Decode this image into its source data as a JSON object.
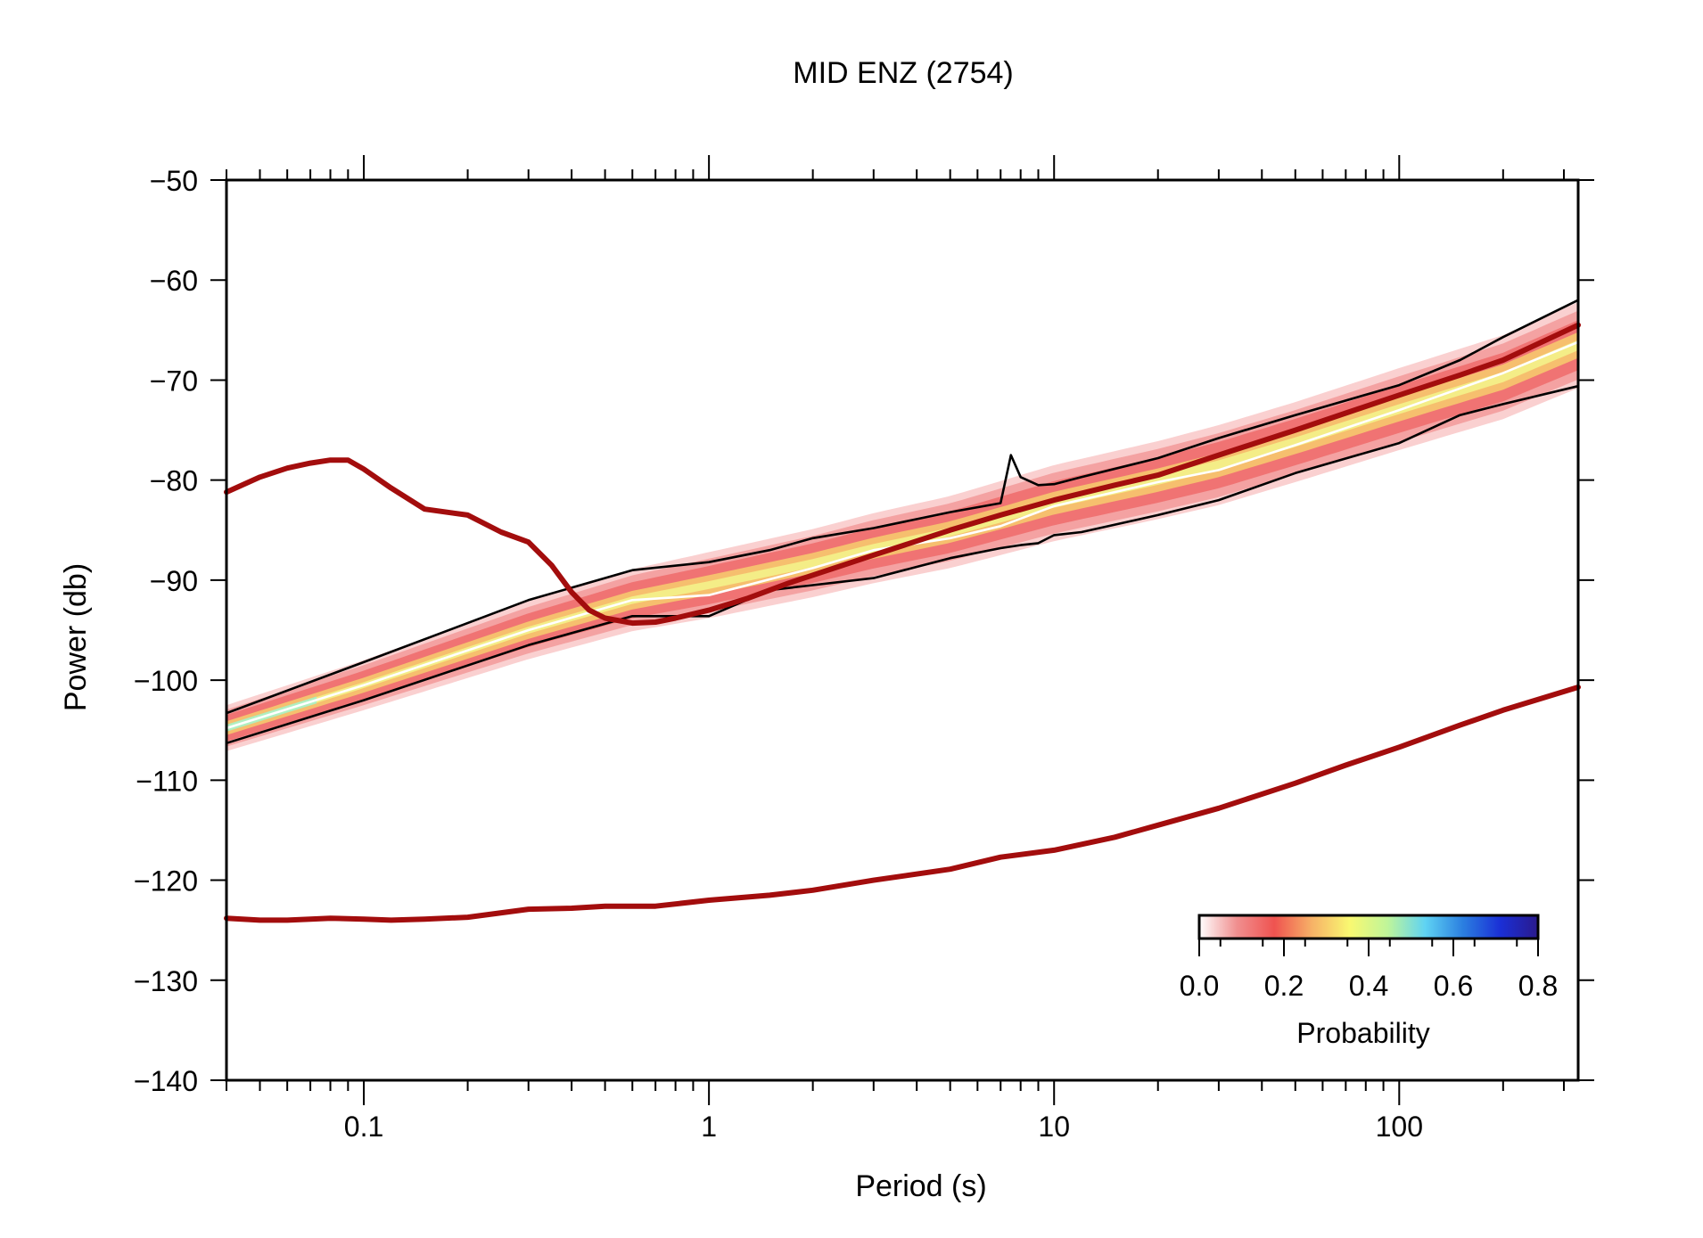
{
  "chart_data": {
    "type": "line",
    "title": "MID ENZ (2754)",
    "xlabel": "Period (s)",
    "ylabel": "Power (db)",
    "x_scale": "log",
    "xlim": [
      0.04,
      330
    ],
    "ylim": [
      -140,
      -50
    ],
    "x_ticks": [
      0.1,
      1,
      10,
      100
    ],
    "x_tick_labels": [
      "0.1",
      "1",
      "10",
      "100"
    ],
    "y_ticks": [
      -50,
      -60,
      -70,
      -80,
      -90,
      -100,
      -110,
      -120,
      -130,
      -140
    ],
    "y_tick_labels": [
      "−50",
      "−60",
      "−70",
      "−80",
      "−90",
      "−100",
      "−110",
      "−120",
      "−130",
      "−140"
    ],
    "grid": false,
    "series": [
      {
        "role": "high-noise-model",
        "color": "#a30d0d",
        "x": [
          0.04,
          0.05,
          0.06,
          0.07,
          0.08,
          0.09,
          0.1,
          0.12,
          0.15,
          0.2,
          0.25,
          0.3,
          0.35,
          0.4,
          0.45,
          0.5,
          0.6,
          0.7,
          0.8,
          1,
          1.3,
          1.7,
          2,
          3,
          5,
          7,
          10,
          15,
          20,
          30,
          50,
          70,
          100,
          150,
          200,
          330
        ],
        "y": [
          -81.2,
          -79.7,
          -78.8,
          -78.3,
          -78,
          -78,
          -78.9,
          -80.8,
          -82.9,
          -83.5,
          -85.2,
          -86.2,
          -88.5,
          -91.2,
          -93,
          -93.8,
          -94.3,
          -94.2,
          -93.8,
          -93,
          -91.8,
          -90.3,
          -89.5,
          -87.5,
          -85,
          -83.5,
          -82,
          -80.5,
          -79.5,
          -77.5,
          -75,
          -73.3,
          -71.5,
          -69.5,
          -68,
          -64.5
        ]
      },
      {
        "role": "low-noise-model",
        "color": "#a30d0d",
        "x": [
          0.04,
          0.05,
          0.06,
          0.07,
          0.08,
          0.1,
          0.12,
          0.15,
          0.2,
          0.3,
          0.4,
          0.5,
          0.7,
          1,
          1.5,
          2,
          3,
          5,
          7,
          10,
          15,
          20,
          30,
          50,
          70,
          100,
          150,
          200,
          330
        ],
        "y": [
          -123.8,
          -124,
          -124,
          -123.9,
          -123.8,
          -123.9,
          -124,
          -123.9,
          -123.7,
          -122.9,
          -122.8,
          -122.6,
          -122.6,
          -122,
          -121.5,
          -121,
          -120,
          -118.9,
          -117.7,
          -117,
          -115.7,
          -114.5,
          -112.8,
          -110.3,
          -108.5,
          -106.7,
          -104.5,
          -103,
          -100.7
        ]
      },
      {
        "role": "upper-percentile",
        "color": "#000000",
        "x": [
          0.04,
          0.1,
          0.3,
          0.6,
          1,
          1.5,
          2,
          3,
          5,
          7,
          7.5,
          8,
          9,
          10,
          12,
          20,
          30,
          50,
          100,
          150,
          200,
          330
        ],
        "y": [
          -103.3,
          -98.2,
          -92,
          -89,
          -88.2,
          -87,
          -85.8,
          -84.8,
          -83.2,
          -82.3,
          -77.5,
          -79.7,
          -80.5,
          -80.4,
          -79.7,
          -77.8,
          -75.8,
          -73.5,
          -70.5,
          -68,
          -65.7,
          -62
        ]
      },
      {
        "role": "lower-percentile",
        "color": "#000000",
        "x": [
          0.04,
          0.1,
          0.3,
          0.6,
          1,
          1.5,
          2,
          3,
          5,
          7,
          8,
          9,
          10,
          12,
          20,
          30,
          50,
          100,
          150,
          200,
          330
        ],
        "y": [
          -106.3,
          -102,
          -96.5,
          -93.6,
          -93.6,
          -91,
          -90.5,
          -89.8,
          -87.8,
          -86.8,
          -86.5,
          -86.3,
          -85.5,
          -85.2,
          -83.5,
          -82,
          -79.3,
          -76.3,
          -73.5,
          -72.4,
          -70.6
        ]
      },
      {
        "role": "mode",
        "color": "#ffffff",
        "x": [
          0.04,
          0.1,
          0.3,
          0.6,
          1,
          2,
          3,
          5,
          7,
          10,
          20,
          30,
          50,
          100,
          200,
          330
        ],
        "y": [
          -104.8,
          -100.5,
          -95,
          -92,
          -91.5,
          -88.8,
          -87,
          -85.8,
          -84.6,
          -82.6,
          -80.2,
          -79,
          -76.5,
          -73,
          -69.3,
          -66.2
        ]
      }
    ],
    "pdf_band": {
      "x": [
        0.04,
        0.1,
        0.3,
        0.6,
        1,
        2,
        3,
        5,
        7,
        10,
        20,
        30,
        50,
        100,
        200,
        330
      ],
      "center": [
        -104.8,
        -100.5,
        -95,
        -92,
        -90.5,
        -88.3,
        -86.8,
        -85.2,
        -83.8,
        -82.3,
        -80,
        -78.5,
        -76.2,
        -72.9,
        -69.7,
        -66.5
      ],
      "halfwidth": [
        2.3,
        2.5,
        2.9,
        3.1,
        3.3,
        3.4,
        3.5,
        3.6,
        3.7,
        3.8,
        3.9,
        4,
        4,
        4.1,
        4.2,
        4.3
      ]
    },
    "colorbar": {
      "label": "Probability",
      "range": [
        0,
        0.8
      ],
      "tick_labels": [
        "0.0",
        "0.2",
        "0.4",
        "0.6",
        "0.8"
      ],
      "position": "bottom-right",
      "stops": [
        "#ffffff",
        "#f08f8f",
        "#ef5350",
        "#f7b267",
        "#f9f871",
        "#bff59a",
        "#5fd3f3",
        "#2b7fe0",
        "#1a2fd6",
        "#2a1a8c"
      ]
    }
  }
}
